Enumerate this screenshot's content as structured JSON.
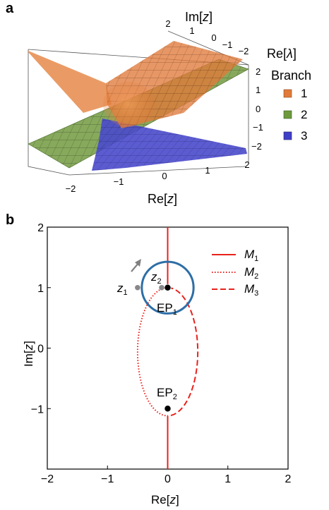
{
  "panels": {
    "a": {
      "label": "a"
    },
    "b": {
      "label": "b"
    }
  },
  "chart_data": [
    {
      "panel": "a",
      "type": "surface",
      "axes": {
        "re_z": {
          "label_main": "Re[",
          "label_var": "z",
          "label_close": "]",
          "ticks": [
            "−2",
            "−1",
            "0",
            "1",
            "2"
          ]
        },
        "im_z": {
          "label_main": "Im[",
          "label_var": "z",
          "label_close": "]",
          "ticks": [
            "2",
            "1",
            "0",
            "−1",
            "−2"
          ]
        },
        "re_lambda": {
          "label_main": "Re[",
          "label_var": "λ",
          "label_close": "]",
          "ticks": [
            "2",
            "1",
            "0",
            "−1",
            "−2"
          ]
        }
      },
      "legend": {
        "title": "Branch",
        "entries": [
          {
            "label": "1",
            "color": "#e07a3a"
          },
          {
            "label": "2",
            "color": "#6e9a3e"
          },
          {
            "label": "3",
            "color": "#3f3fc8"
          }
        ]
      },
      "xlim": [
        -2,
        2
      ],
      "ylim": [
        -2,
        2
      ],
      "zlim": [
        -2,
        2
      ]
    },
    {
      "panel": "b",
      "type": "line",
      "xlabel_main": "Re[",
      "xlabel_var": "z",
      "xlabel_close": "]",
      "ylabel_main": "Im[",
      "ylabel_var": "z",
      "ylabel_close": "]",
      "xlim": [
        -2,
        2
      ],
      "ylim": [
        -2,
        2
      ],
      "xticks": [
        -2,
        -1,
        0,
        1,
        2
      ],
      "yticks": [
        -1,
        0,
        1,
        2
      ],
      "xtick_labels": [
        "−2",
        "−1",
        "0",
        "1",
        "2"
      ],
      "ytick_labels": [
        "−1",
        "0",
        "1",
        "2"
      ],
      "legend": [
        {
          "name": "M",
          "sub": "1",
          "style": "solid"
        },
        {
          "name": "M",
          "sub": "2",
          "style": "dotted"
        },
        {
          "name": "M",
          "sub": "3",
          "style": "dashed"
        }
      ],
      "line_color": "#e8221c",
      "circle_color": "#2e6ea6",
      "series": [
        {
          "name": "M1",
          "style": "solid",
          "segments": [
            [
              [
                0,
                1
              ],
              [
                0,
                2
              ]
            ],
            [
              [
                0,
                -1.12
              ],
              [
                0,
                -2
              ]
            ]
          ]
        },
        {
          "name": "M2",
          "style": "dotted",
          "ellipse_half": "left",
          "center": [
            0,
            -0.06
          ],
          "rx": 0.5,
          "ry": 1.06
        },
        {
          "name": "M3",
          "style": "dashed",
          "ellipse_half": "right",
          "center": [
            0,
            -0.06
          ],
          "rx": 0.5,
          "ry": 1.06
        }
      ],
      "loop": {
        "center": [
          0,
          1
        ],
        "radius": 0.43
      },
      "points": [
        {
          "label": "EP",
          "sub": "1",
          "x": 0,
          "y": 1,
          "color": "#000000"
        },
        {
          "label": "EP",
          "sub": "2",
          "x": 0,
          "y": -1,
          "color": "#000000"
        },
        {
          "label": "z",
          "sub": "1",
          "x": -0.5,
          "y": 1,
          "color": "#888888"
        },
        {
          "label": "z",
          "sub": "2",
          "x": -0.1,
          "y": 1,
          "color": "#888888"
        }
      ]
    }
  ]
}
